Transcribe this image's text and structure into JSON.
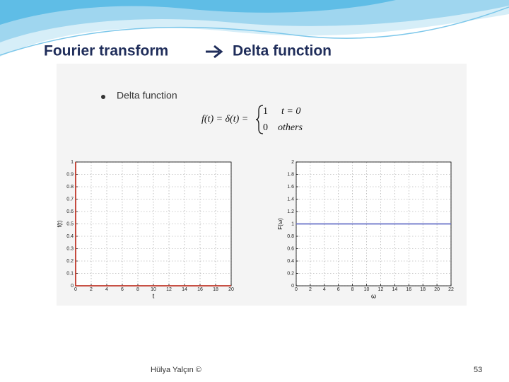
{
  "header": {
    "title_left": "Fourier transform",
    "title_right": "Delta function"
  },
  "bullet": "Delta function",
  "equation": {
    "lhs": "f(t) = δ(t) =",
    "case1_value": "1",
    "case1_condition": "t = 0",
    "case2_value": "0",
    "case2_condition": "others"
  },
  "chart_data": [
    {
      "type": "line",
      "xlabel": "t",
      "ylabel": "f(t)",
      "xlim": [
        0,
        20
      ],
      "xticks": [
        0,
        2,
        4,
        6,
        8,
        10,
        12,
        14,
        16,
        18,
        20
      ],
      "ylim": [
        0,
        1
      ],
      "yticks": [
        0,
        0.1,
        0.2,
        0.3,
        0.4,
        0.5,
        0.6,
        0.7,
        0.8,
        0.9,
        1
      ],
      "grid": true,
      "series": [
        {
          "color": "#c0392b",
          "x": [
            0,
            0,
            20
          ],
          "values": [
            1,
            0,
            0
          ]
        }
      ]
    },
    {
      "type": "line",
      "xlabel": "ω",
      "ylabel": "F(ω)",
      "xlim": [
        0,
        22
      ],
      "xticks": [
        0,
        2,
        4,
        6,
        8,
        10,
        12,
        14,
        16,
        18,
        20,
        22
      ],
      "ylim": [
        0,
        2
      ],
      "yticks": [
        0,
        0.2,
        0.4,
        0.6,
        0.8,
        1,
        1.2,
        1.4,
        1.6,
        1.8,
        2
      ],
      "grid": true,
      "series": [
        {
          "color": "#6670c8",
          "x": [
            0,
            22
          ],
          "values": [
            1,
            1
          ]
        }
      ]
    }
  ],
  "footer": {
    "author": "Hülya Yalçın ©",
    "page": "53"
  }
}
